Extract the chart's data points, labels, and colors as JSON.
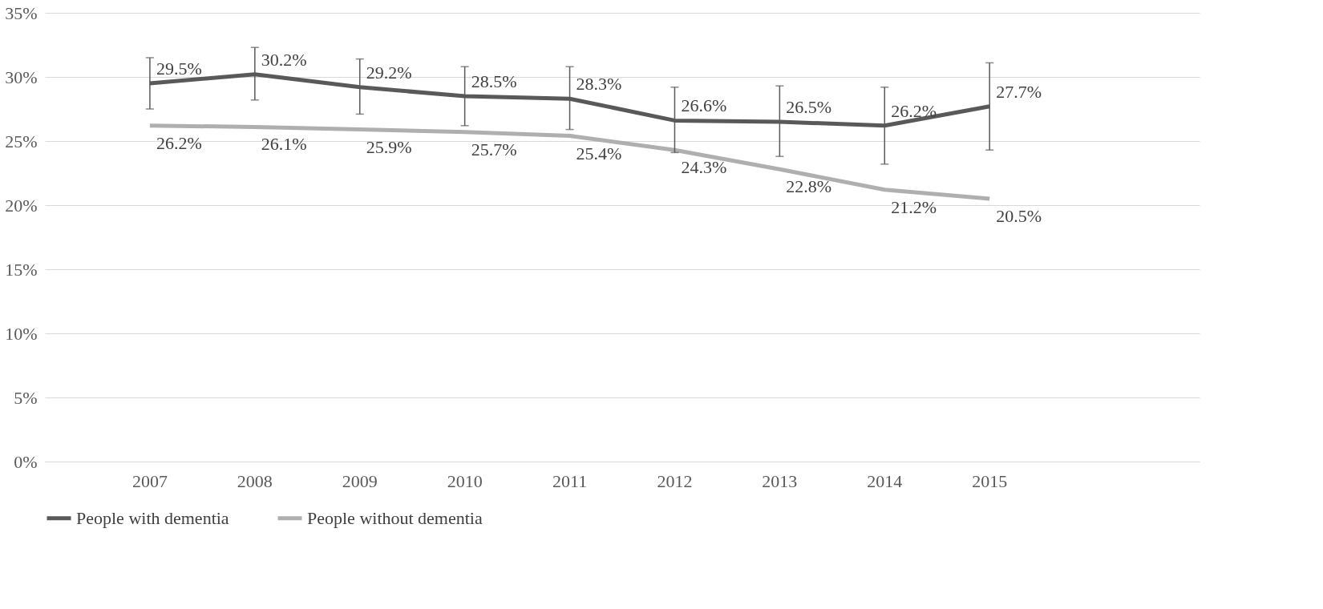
{
  "chart_data": {
    "type": "line",
    "categories": [
      "2007",
      "2008",
      "2009",
      "2010",
      "2011",
      "2012",
      "2013",
      "2014",
      "2015",
      null
    ],
    "series": [
      {
        "name": "People with dementia",
        "color": "#595959",
        "values": [
          29.5,
          30.2,
          29.2,
          28.5,
          28.3,
          26.6,
          26.5,
          26.2,
          27.7,
          null
        ],
        "value_labels": [
          "29.5%",
          "30.2%",
          "29.2%",
          "28.5%",
          "28.3%",
          "26.6%",
          "26.5%",
          "26.2%",
          "27.7%",
          null
        ],
        "errors": [
          [
            27.5,
            31.5
          ],
          [
            28.2,
            32.3
          ],
          [
            27.1,
            31.4
          ],
          [
            26.2,
            30.8
          ],
          [
            25.9,
            30.8
          ],
          [
            24.1,
            29.2
          ],
          [
            23.8,
            29.3
          ],
          [
            23.2,
            29.2
          ],
          [
            24.3,
            31.1
          ],
          null
        ]
      },
      {
        "name": "People without dementia",
        "color": "#afafaf",
        "values": [
          26.2,
          26.1,
          25.9,
          25.7,
          25.4,
          24.3,
          22.8,
          21.2,
          20.5,
          null
        ],
        "value_labels": [
          "26.2%",
          "26.1%",
          "25.9%",
          "25.7%",
          "25.4%",
          "24.3%",
          "22.8%",
          "21.2%",
          "20.5%",
          null
        ]
      }
    ],
    "ylim": [
      0,
      35
    ],
    "yticks": [
      {
        "value": 0,
        "label": "0%"
      },
      {
        "value": 5,
        "label": "5%"
      },
      {
        "value": 10,
        "label": "10%"
      },
      {
        "value": 15,
        "label": "15%"
      },
      {
        "value": 20,
        "label": "20%"
      },
      {
        "value": 25,
        "label": "25%"
      },
      {
        "value": 30,
        "label": "30%"
      },
      {
        "value": 35,
        "label": "35%"
      }
    ],
    "grid": "y",
    "legend": "bottom",
    "line_style": "solid",
    "marker": "none"
  }
}
